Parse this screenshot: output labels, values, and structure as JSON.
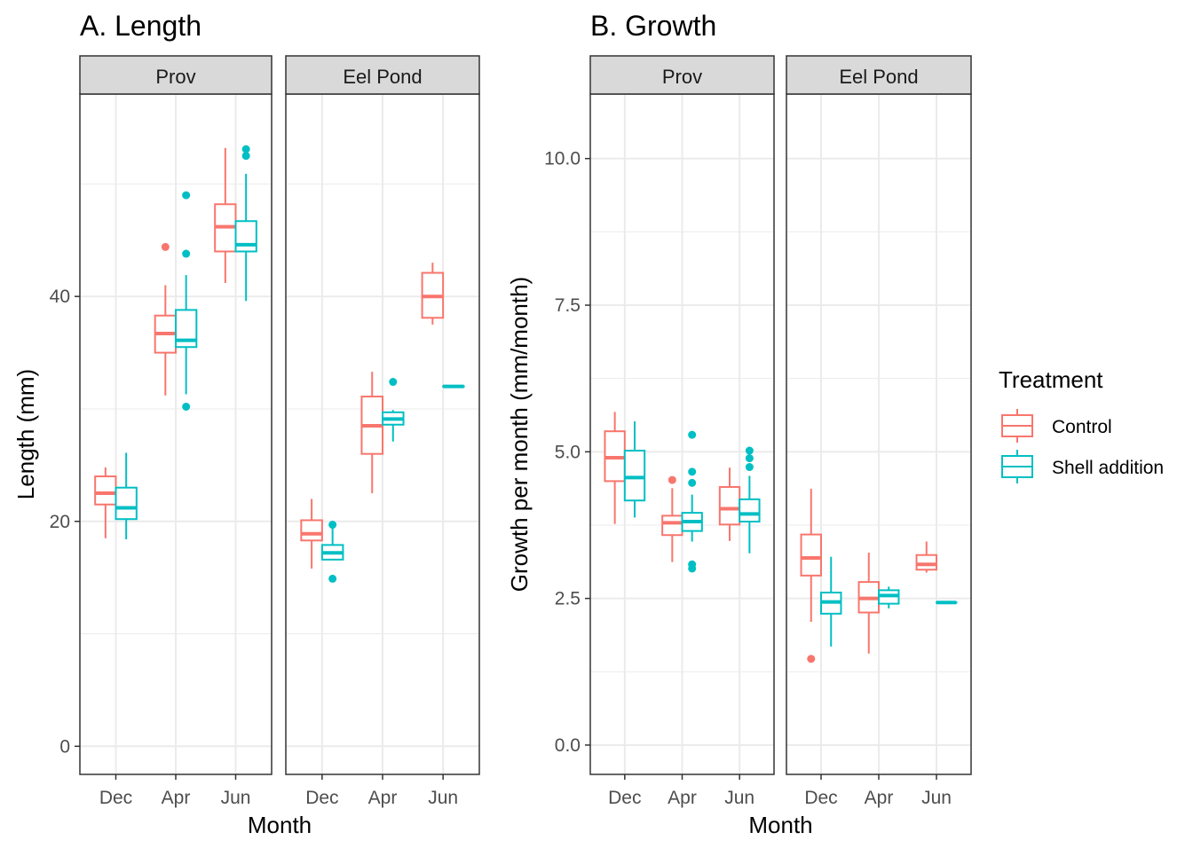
{
  "colors": {
    "control": "#F8766D",
    "shell": "#00BFC4",
    "grid": "#EBEBEB",
    "strip_fill": "#D9D9D9",
    "panel_border": "#333333"
  },
  "legend": {
    "title": "Treatment",
    "items": [
      {
        "key": "control",
        "label": "Control"
      },
      {
        "key": "shell",
        "label": "Shell addition"
      }
    ]
  },
  "chart_data": [
    {
      "type": "boxplot",
      "title": "A. Length",
      "xlabel": "Month",
      "ylabel": "Length (mm)",
      "ylim": [
        -2.5,
        58
      ],
      "yticks": [
        0,
        20,
        40
      ],
      "ylabels": [
        "0",
        "20",
        "40"
      ],
      "grid": true,
      "categories": [
        "Dec",
        "Apr",
        "Jun"
      ],
      "facets": [
        {
          "name": "Prov",
          "series": [
            {
              "name": "Control",
              "key": "control",
              "boxes": [
                {
                  "x": "Dec",
                  "min": 18.5,
                  "q1": 21.5,
                  "median": 22.5,
                  "q3": 24,
                  "max": 24.8,
                  "outliers": []
                },
                {
                  "x": "Apr",
                  "min": 31.2,
                  "q1": 35,
                  "median": 36.7,
                  "q3": 38.3,
                  "max": 41,
                  "outliers": [
                    44.4
                  ]
                },
                {
                  "x": "Jun",
                  "min": 41.2,
                  "q1": 44,
                  "median": 46.2,
                  "q3": 48.2,
                  "max": 53.2,
                  "outliers": []
                }
              ]
            },
            {
              "name": "Shell addition",
              "key": "shell",
              "boxes": [
                {
                  "x": "Dec",
                  "min": 18.4,
                  "q1": 20.2,
                  "median": 21.2,
                  "q3": 23,
                  "max": 26.1,
                  "outliers": []
                },
                {
                  "x": "Apr",
                  "min": 31.3,
                  "q1": 35.5,
                  "median": 36.1,
                  "q3": 38.8,
                  "max": 41.9,
                  "outliers": [
                    30.2,
                    43.8,
                    49
                  ]
                },
                {
                  "x": "Jun",
                  "min": 39.6,
                  "q1": 44,
                  "median": 44.6,
                  "q3": 46.7,
                  "max": 50.9,
                  "outliers": [
                    52.5,
                    53.1
                  ]
                }
              ]
            }
          ]
        },
        {
          "name": "Eel Pond",
          "series": [
            {
              "name": "Control",
              "key": "control",
              "boxes": [
                {
                  "x": "Dec",
                  "min": 15.8,
                  "q1": 18.3,
                  "median": 18.9,
                  "q3": 20.1,
                  "max": 22,
                  "outliers": []
                },
                {
                  "x": "Apr",
                  "min": 22.5,
                  "q1": 26,
                  "median": 28.5,
                  "q3": 31.1,
                  "max": 33.3,
                  "outliers": []
                },
                {
                  "x": "Jun",
                  "min": 37.5,
                  "q1": 38.1,
                  "median": 40,
                  "q3": 42.1,
                  "max": 43,
                  "outliers": []
                }
              ]
            },
            {
              "name": "Shell addition",
              "key": "shell",
              "boxes": [
                {
                  "x": "Dec",
                  "min": 16.6,
                  "q1": 16.6,
                  "median": 17.2,
                  "q3": 17.9,
                  "max": 19.7,
                  "outliers": [
                    14.9,
                    19.7
                  ]
                },
                {
                  "x": "Apr",
                  "min": 27.1,
                  "q1": 28.6,
                  "median": 29.1,
                  "q3": 29.7,
                  "max": 29.9,
                  "outliers": [
                    32.4
                  ]
                },
                {
                  "x": "Jun",
                  "min": 32,
                  "q1": 32,
                  "median": 32,
                  "q3": 32,
                  "max": 32,
                  "outliers": []
                }
              ]
            }
          ]
        }
      ]
    },
    {
      "type": "boxplot",
      "title": "B. Growth",
      "xlabel": "Month",
      "ylabel": "Growth per month (mm/month)",
      "ylim": [
        -0.5,
        11.1
      ],
      "yticks": [
        0,
        2.5,
        5,
        7.5,
        10
      ],
      "ylabels": [
        "0.0",
        "2.5",
        "5.0",
        "7.5",
        "10.0"
      ],
      "grid": true,
      "categories": [
        "Dec",
        "Apr",
        "Jun"
      ],
      "facets": [
        {
          "name": "Prov",
          "series": [
            {
              "name": "Control",
              "key": "control",
              "boxes": [
                {
                  "x": "Dec",
                  "min": 3.77,
                  "q1": 4.5,
                  "median": 4.9,
                  "q3": 5.35,
                  "max": 5.68,
                  "outliers": []
                },
                {
                  "x": "Apr",
                  "min": 3.12,
                  "q1": 3.58,
                  "median": 3.79,
                  "q3": 3.91,
                  "max": 4.38,
                  "outliers": [
                    4.52
                  ]
                },
                {
                  "x": "Jun",
                  "min": 3.48,
                  "q1": 3.76,
                  "median": 4.03,
                  "q3": 4.4,
                  "max": 4.73,
                  "outliers": []
                }
              ]
            },
            {
              "name": "Shell addition",
              "key": "shell",
              "boxes": [
                {
                  "x": "Dec",
                  "min": 3.88,
                  "q1": 4.17,
                  "median": 4.56,
                  "q3": 5.02,
                  "max": 5.52,
                  "outliers": []
                },
                {
                  "x": "Apr",
                  "min": 3.47,
                  "q1": 3.65,
                  "median": 3.81,
                  "q3": 3.96,
                  "max": 4.27,
                  "outliers": [
                    3.01,
                    3.08,
                    4.47,
                    4.66,
                    5.29
                  ]
                },
                {
                  "x": "Jun",
                  "min": 3.27,
                  "q1": 3.81,
                  "median": 3.94,
                  "q3": 4.19,
                  "max": 4.59,
                  "outliers": [
                    4.74,
                    4.89,
                    5.02
                  ]
                }
              ]
            }
          ]
        },
        {
          "name": "Eel Pond",
          "series": [
            {
              "name": "Control",
              "key": "control",
              "boxes": [
                {
                  "x": "Dec",
                  "min": 2.1,
                  "q1": 2.89,
                  "median": 3.19,
                  "q3": 3.59,
                  "max": 4.37,
                  "outliers": [
                    1.47
                  ]
                },
                {
                  "x": "Apr",
                  "min": 1.56,
                  "q1": 2.26,
                  "median": 2.5,
                  "q3": 2.78,
                  "max": 3.28,
                  "outliers": []
                },
                {
                  "x": "Jun",
                  "min": 2.94,
                  "q1": 2.99,
                  "median": 3.08,
                  "q3": 3.24,
                  "max": 3.47,
                  "outliers": []
                }
              ]
            },
            {
              "name": "Shell addition",
              "key": "shell",
              "boxes": [
                {
                  "x": "Dec",
                  "min": 1.68,
                  "q1": 2.24,
                  "median": 2.44,
                  "q3": 2.6,
                  "max": 3.21,
                  "outliers": []
                },
                {
                  "x": "Apr",
                  "min": 2.33,
                  "q1": 2.41,
                  "median": 2.55,
                  "q3": 2.64,
                  "max": 2.7,
                  "outliers": []
                },
                {
                  "x": "Jun",
                  "min": 2.43,
                  "q1": 2.43,
                  "median": 2.43,
                  "q3": 2.43,
                  "max": 2.43,
                  "outliers": []
                }
              ]
            }
          ]
        }
      ]
    }
  ]
}
